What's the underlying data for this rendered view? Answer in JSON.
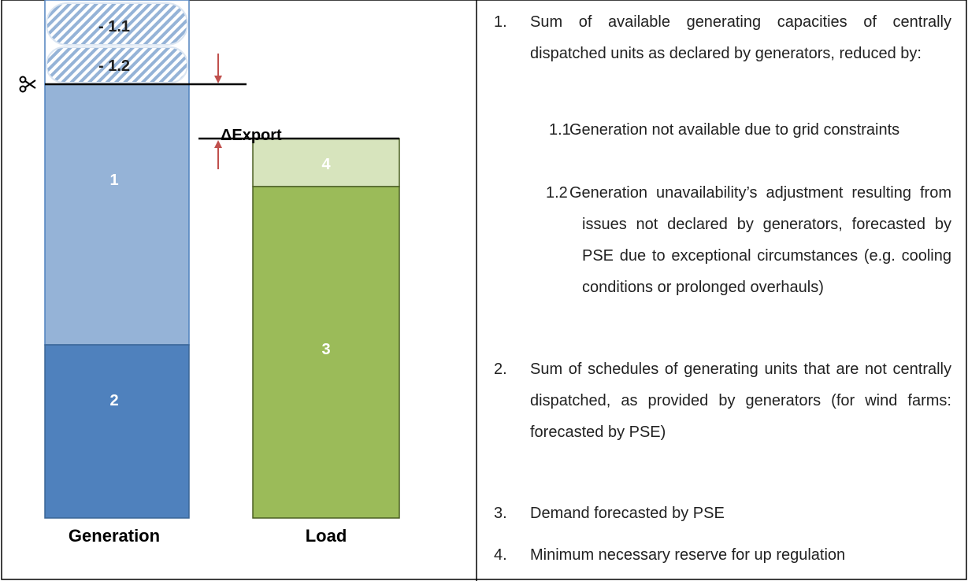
{
  "diagram": {
    "segments": {
      "s1_1": "- 1.1",
      "s1_2": "- 1.2",
      "s1": "1",
      "s2": "2",
      "s3": "3",
      "s4": "4"
    },
    "delta": "ΔExport",
    "columns": [
      "Generation",
      "Load"
    ]
  },
  "list": [
    {
      "number": "1.",
      "text": "Sum of available generating capacities of centrally dispatched units as declared by generators, reduced by:",
      "sub": [
        {
          "number": "1.1",
          "text": "Generation not available due to grid constraints"
        },
        {
          "number": "1.2",
          "text": "Generation unavailability’s adjustment resulting from issues not declared by generators, forecasted by PSE due to exceptional circumstances (e.g. cooling conditions or prolonged overhauls)"
        }
      ]
    },
    {
      "number": "2.",
      "text": "Sum of schedules of generating units that are not centrally dispatched, as provided by generators (for wind farms: forecasted by PSE)"
    },
    {
      "number": "3.",
      "text": "Demand forecasted by PSE"
    },
    {
      "number": "4.",
      "text": "Minimum necessary reserve for up regulation"
    }
  ]
}
